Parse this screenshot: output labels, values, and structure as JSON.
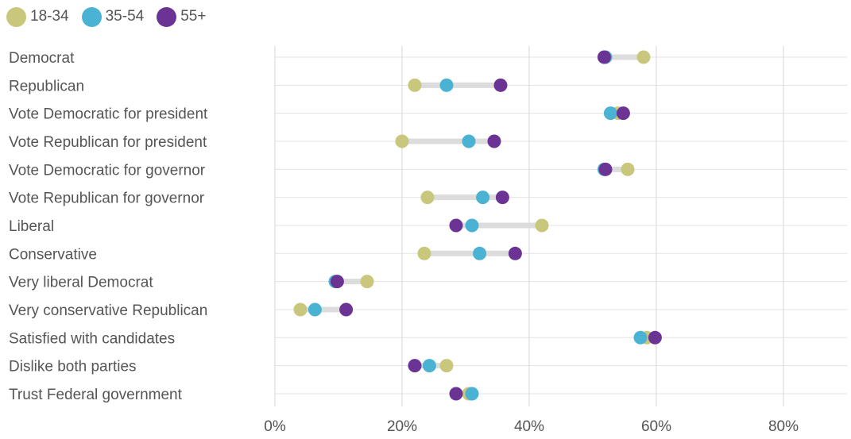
{
  "chart_data": {
    "type": "scatter",
    "subtype": "dot-plot",
    "title": "",
    "xlabel": "",
    "ylabel": "",
    "xlim": [
      0,
      90
    ],
    "x_ticks": [
      0,
      20,
      40,
      60,
      80
    ],
    "x_tick_labels": [
      "0%",
      "20%",
      "40%",
      "60%",
      "80%"
    ],
    "grid": true,
    "legend_position": "top-left",
    "categories": [
      "Democrat",
      "Republican",
      "Vote Democratic for president",
      "Vote Republican for president",
      "Vote Democratic for governor",
      "Vote Republican for governor",
      "Liberal",
      "Conservative",
      "Very liberal Democrat",
      "Very conservative Republican",
      "Satisfied with candidates",
      "Dislike both parties",
      "Trust Federal government"
    ],
    "series": [
      {
        "name": "18-34",
        "color": "#c9c77c",
        "values": [
          58,
          22,
          54,
          20,
          55.5,
          24,
          42,
          23.5,
          14.5,
          4,
          58.5,
          27,
          30.5
        ]
      },
      {
        "name": "35-54",
        "color": "#4ab2d2",
        "values": [
          52,
          27,
          52.8,
          30.5,
          51.8,
          32.7,
          31,
          32.2,
          9.5,
          6.3,
          57.5,
          24.3,
          31
        ]
      },
      {
        "name": "55+",
        "color": "#6b3494",
        "values": [
          51.8,
          35.5,
          54.8,
          34.5,
          52,
          35.8,
          28.5,
          37.8,
          9.8,
          11.2,
          59.8,
          22,
          28.5
        ]
      }
    ],
    "range_bar_color": "#dcdcdc",
    "grid_color": "#e3e3e3",
    "label_color": "#555555"
  }
}
